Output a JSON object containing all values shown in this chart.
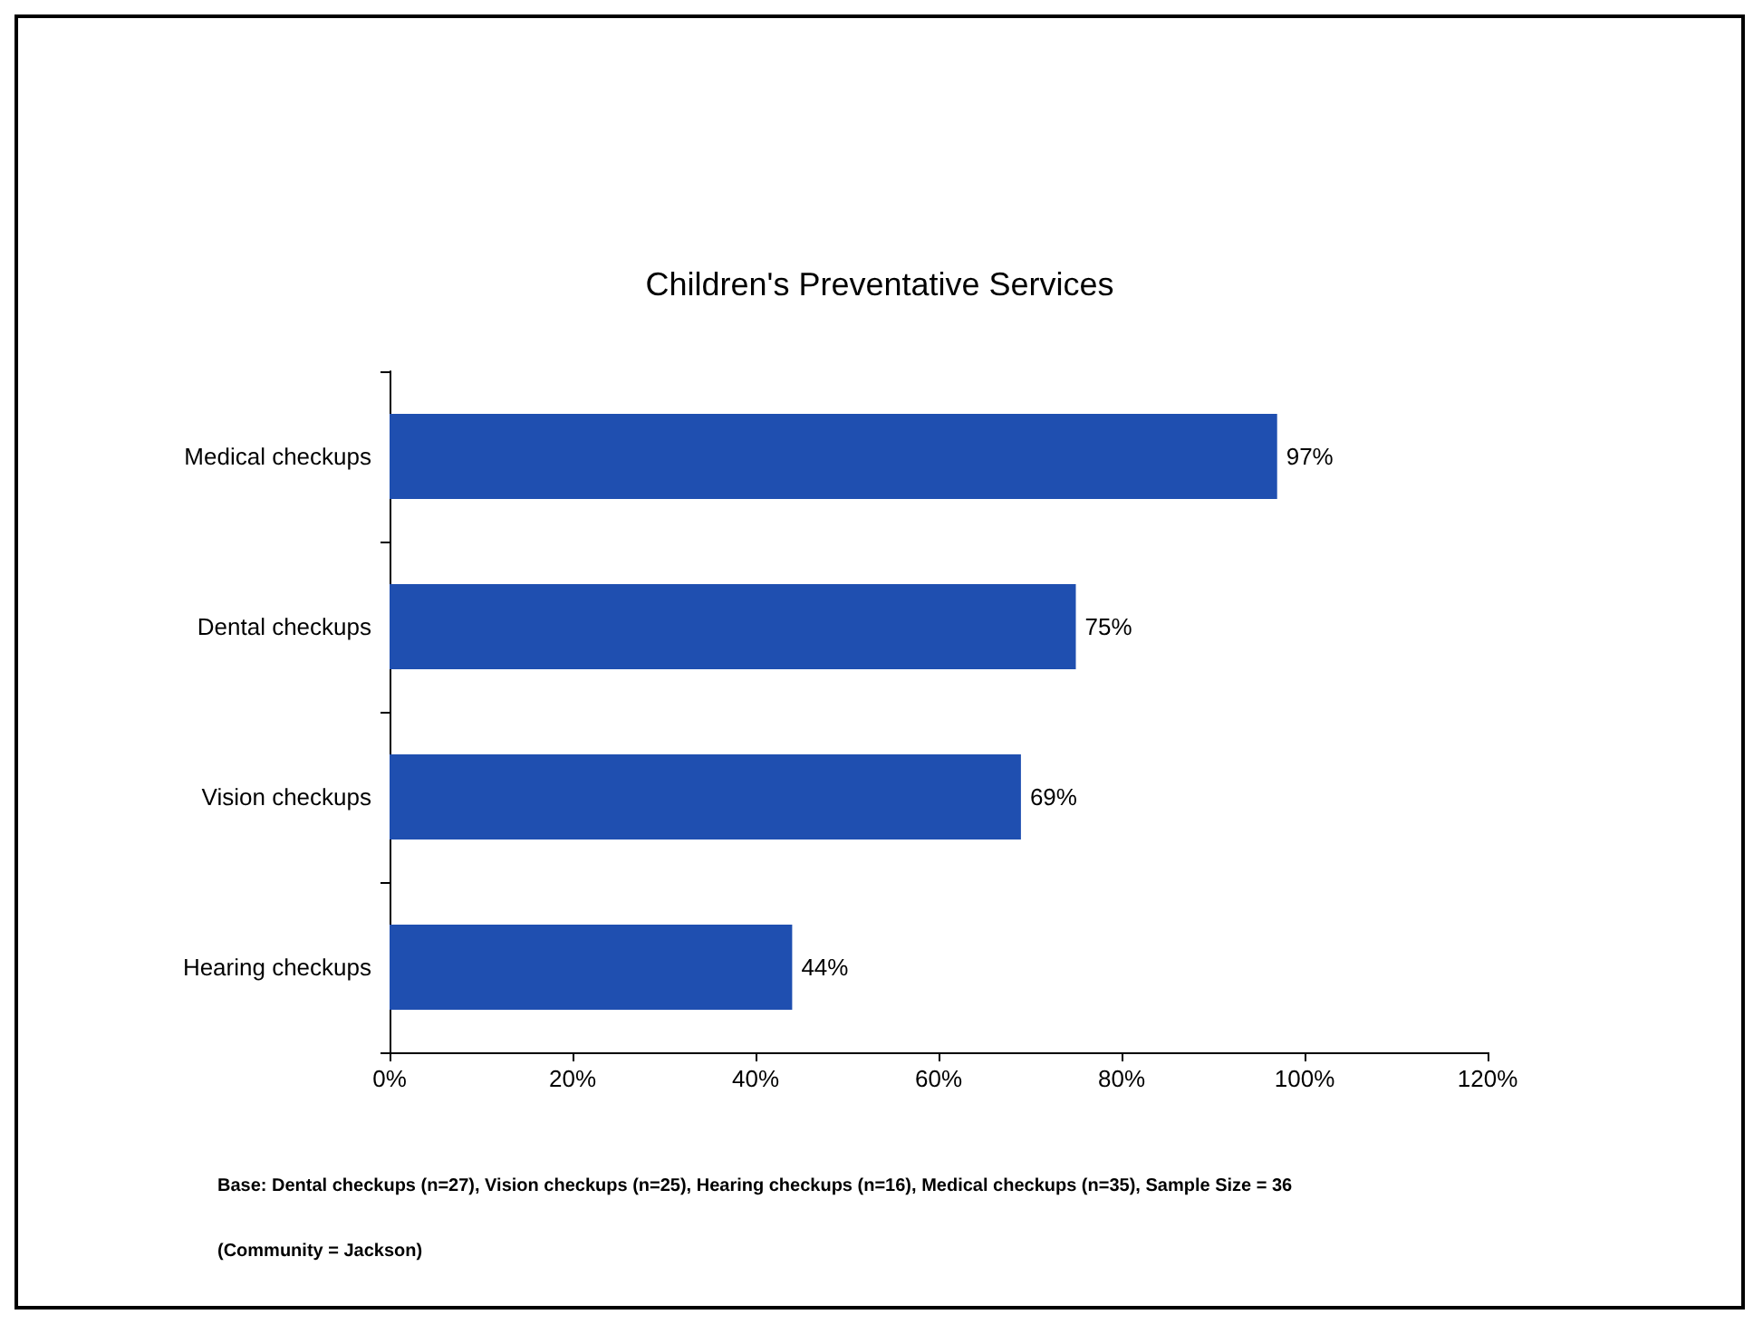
{
  "chart_data": {
    "type": "bar",
    "orientation": "horizontal",
    "title": "Children's Preventative Services",
    "categories": [
      "Medical checkups",
      "Dental checkups",
      "Vision checkups",
      "Hearing checkups"
    ],
    "values": [
      97,
      75,
      69,
      44
    ],
    "value_labels": [
      "97%",
      "75%",
      "69%",
      "44%"
    ],
    "color": "#1f4fb0",
    "xlim": [
      0,
      120
    ],
    "xticks": [
      {
        "value": 0,
        "label": "0%"
      },
      {
        "value": 20,
        "label": "20%"
      },
      {
        "value": 40,
        "label": "40%"
      },
      {
        "value": 60,
        "label": "60%"
      },
      {
        "value": 80,
        "label": "80%"
      },
      {
        "value": 100,
        "label": "100%"
      },
      {
        "value": 120,
        "label": "120%"
      }
    ],
    "grid": false,
    "annotations": [
      "Base: Dental checkups (n=27), Vision checkups (n=25), Hearing checkups (n=16), Medical checkups (n=35), Sample Size = 36",
      "(Community = Jackson)"
    ]
  }
}
